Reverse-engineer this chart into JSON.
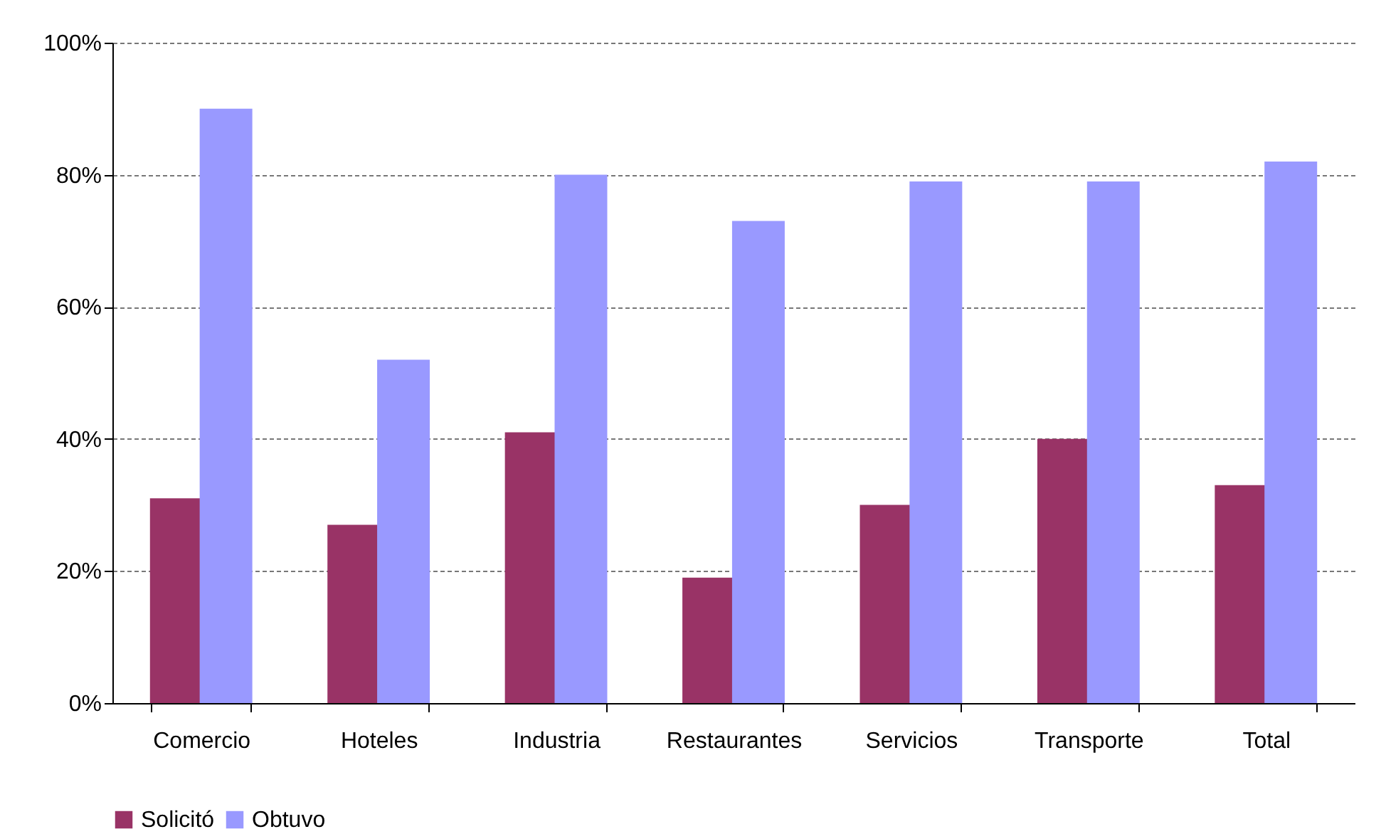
{
  "chart_data": {
    "type": "bar",
    "categories": [
      "Comercio",
      "Hoteles",
      "Industria",
      "Restaurantes",
      "Servicios",
      "Transporte",
      "Total"
    ],
    "series": [
      {
        "name": "Solicitó",
        "color": "#993366",
        "values": [
          31,
          27,
          41,
          19,
          30,
          40,
          33
        ]
      },
      {
        "name": "Obtuvo",
        "color": "#9999ff",
        "values": [
          90,
          52,
          80,
          73,
          79,
          79,
          82
        ]
      }
    ],
    "ylim": [
      0,
      100
    ],
    "yticks": [
      {
        "value": 0,
        "label": "0%"
      },
      {
        "value": 20,
        "label": "20%"
      },
      {
        "value": 40,
        "label": "40%"
      },
      {
        "value": 60,
        "label": "60%"
      },
      {
        "value": 80,
        "label": "80%"
      },
      {
        "value": 100,
        "label": "100%"
      }
    ],
    "grid": "y",
    "legend": "bottom"
  }
}
